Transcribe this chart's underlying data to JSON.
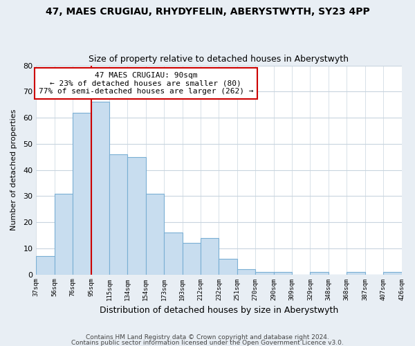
{
  "title1": "47, MAES CRUGIAU, RHYDYFELIN, ABERYSTWYTH, SY23 4PP",
  "title2": "Size of property relative to detached houses in Aberystwyth",
  "xlabel": "Distribution of detached houses by size in Aberystwyth",
  "ylabel": "Number of detached properties",
  "bin_labels": [
    "37sqm",
    "56sqm",
    "76sqm",
    "95sqm",
    "115sqm",
    "134sqm",
    "154sqm",
    "173sqm",
    "193sqm",
    "212sqm",
    "232sqm",
    "251sqm",
    "270sqm",
    "290sqm",
    "309sqm",
    "329sqm",
    "348sqm",
    "368sqm",
    "387sqm",
    "407sqm",
    "426sqm"
  ],
  "bar_values": [
    7,
    31,
    62,
    66,
    46,
    45,
    31,
    16,
    12,
    14,
    6,
    2,
    1,
    1,
    0,
    1,
    0,
    1,
    0,
    1
  ],
  "bar_color": "#c8ddef",
  "bar_edge_color": "#7aafd4",
  "vline_color": "#cc0000",
  "annotation_title": "47 MAES CRUGIAU: 90sqm",
  "annotation_line1": "← 23% of detached houses are smaller (80)",
  "annotation_line2": "77% of semi-detached houses are larger (262) →",
  "annotation_box_color": "#ffffff",
  "annotation_box_edge": "#cc0000",
  "ylim": [
    0,
    80
  ],
  "yticks": [
    0,
    10,
    20,
    30,
    40,
    50,
    60,
    70,
    80
  ],
  "footnote1": "Contains HM Land Registry data © Crown copyright and database right 2024.",
  "footnote2": "Contains public sector information licensed under the Open Government Licence v3.0.",
  "bg_color": "#e8eef4",
  "plot_bg_color": "#ffffff",
  "grid_color": "#c8d4de"
}
